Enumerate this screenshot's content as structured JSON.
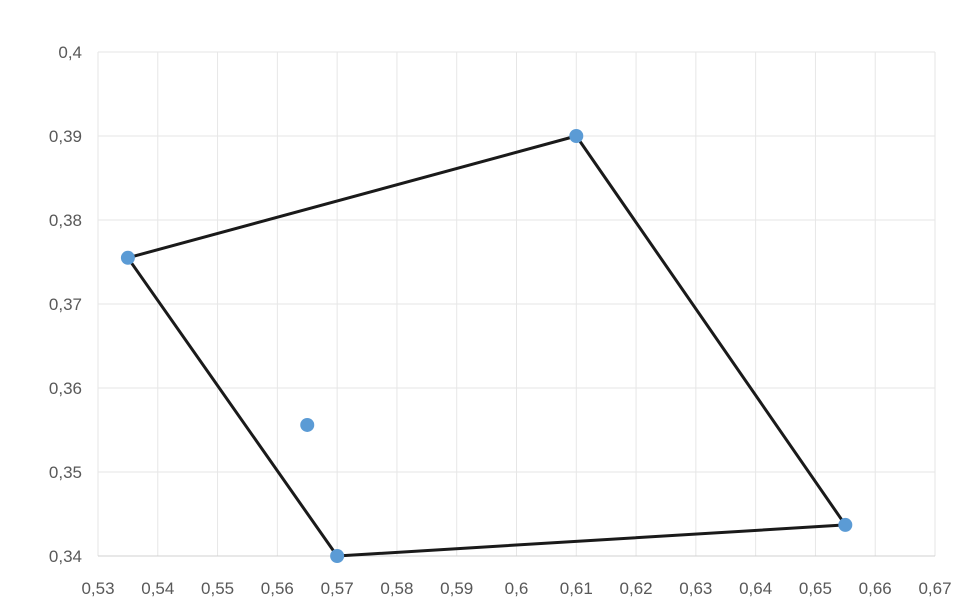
{
  "chart_data": {
    "type": "scatter",
    "title": "",
    "xlabel": "",
    "ylabel": "",
    "xlim": [
      0.53,
      0.67
    ],
    "ylim": [
      0.34,
      0.4
    ],
    "x_ticks": [
      0.53,
      0.54,
      0.55,
      0.56,
      0.57,
      0.58,
      0.59,
      0.6,
      0.61,
      0.62,
      0.63,
      0.64,
      0.65,
      0.66,
      0.67
    ],
    "x_tick_labels": [
      "0,53",
      "0,54",
      "0,55",
      "0,56",
      "0,57",
      "0,58",
      "0,59",
      "0,6",
      "0,61",
      "0,62",
      "0,63",
      "0,64",
      "0,65",
      "0,66",
      "0,67"
    ],
    "y_ticks": [
      0.34,
      0.35,
      0.36,
      0.37,
      0.38,
      0.39,
      0.4
    ],
    "y_tick_labels": [
      "0,34",
      "0,35",
      "0,36",
      "0,37",
      "0,38",
      "0,39",
      "0,4"
    ],
    "grid": true,
    "legend": "none",
    "points": [
      {
        "x": 0.535,
        "y": 0.3755
      },
      {
        "x": 0.61,
        "y": 0.39
      },
      {
        "x": 0.655,
        "y": 0.3437
      },
      {
        "x": 0.57,
        "y": 0.34
      },
      {
        "x": 0.565,
        "y": 0.3556
      }
    ],
    "polygon": [
      {
        "x": 0.535,
        "y": 0.3755
      },
      {
        "x": 0.61,
        "y": 0.39
      },
      {
        "x": 0.655,
        "y": 0.3437
      },
      {
        "x": 0.57,
        "y": 0.34
      }
    ],
    "colors": {
      "point": "#5b9bd5",
      "polygon": "#1a1a1a",
      "grid": "#e6e6e6"
    }
  }
}
